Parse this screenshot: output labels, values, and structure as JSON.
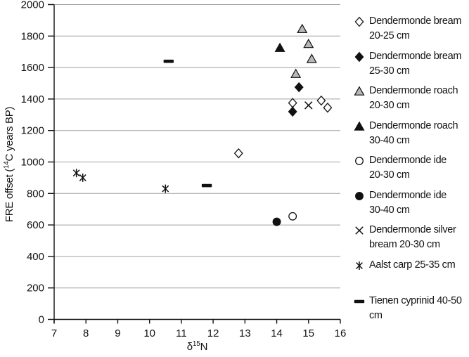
{
  "chart_data": {
    "type": "scatter",
    "title": "",
    "xlabel": {
      "prefix": "δ",
      "sup": "15",
      "suffix": "N"
    },
    "ylabel": {
      "prefix": "FRE offset (",
      "sup": "14",
      "suffix": "C years BP)"
    },
    "xlim": [
      7,
      16
    ],
    "ylim": [
      0,
      2000
    ],
    "x_ticks": [
      7,
      8,
      9,
      10,
      11,
      12,
      13,
      14,
      15,
      16
    ],
    "y_ticks": [
      0,
      200,
      400,
      600,
      800,
      1000,
      1200,
      1400,
      1600,
      1800,
      2000
    ],
    "grid": "horizontal",
    "legend_position": "right",
    "colors": {
      "marker_black": "#111111",
      "gray_fill": "#b8b8b8",
      "white_fill": "#ffffff",
      "gridline": "#a0a0a0",
      "axis": "#111111"
    },
    "series": [
      {
        "name": "Dendermonde bream 20-25 cm",
        "legend_lines": [
          "Dendermonde bream",
          "20-25 cm"
        ],
        "marker": "open-diamond",
        "points": [
          [
            12.8,
            1055
          ],
          [
            14.5,
            1375
          ],
          [
            15.4,
            1390
          ],
          [
            15.6,
            1345
          ]
        ]
      },
      {
        "name": "Dendermonde bream 25-30 cm",
        "legend_lines": [
          "Dendermonde bream",
          "25-30 cm"
        ],
        "marker": "filled-diamond",
        "points": [
          [
            14.7,
            1475
          ],
          [
            14.5,
            1320
          ]
        ]
      },
      {
        "name": "Dendermonde roach 20-30 cm",
        "legend_lines": [
          "Dendermonde roach",
          "20-30 cm"
        ],
        "marker": "gray-triangle",
        "points": [
          [
            14.8,
            1845
          ],
          [
            15.0,
            1750
          ],
          [
            15.1,
            1655
          ],
          [
            14.6,
            1560
          ]
        ]
      },
      {
        "name": "Dendermonde roach 30-40 cm",
        "legend_lines": [
          "Dendermonde roach",
          "30-40 cm"
        ],
        "marker": "filled-triangle",
        "points": [
          [
            14.1,
            1725
          ]
        ]
      },
      {
        "name": "Dendermonde ide 20-30 cm",
        "legend_lines": [
          "Dendermonde ide",
          "20-30 cm"
        ],
        "marker": "open-circle",
        "points": [
          [
            14.5,
            655
          ]
        ]
      },
      {
        "name": "Dendermonde ide 30-40 cm",
        "legend_lines": [
          "Dendermonde ide",
          "30-40 cm"
        ],
        "marker": "filled-circle",
        "points": [
          [
            14.0,
            620
          ]
        ]
      },
      {
        "name": "Dendermonde silver bream 20-30 cm",
        "legend_lines": [
          "Dendermonde silver",
          "bream 20-30 cm"
        ],
        "marker": "x",
        "points": [
          [
            15.0,
            1360
          ]
        ]
      },
      {
        "name": "Aalst carp 25-35 cm",
        "legend_lines": [
          "Aalst carp 25-35 cm"
        ],
        "marker": "asterisk",
        "points": [
          [
            7.7,
            930
          ],
          [
            7.9,
            900
          ],
          [
            10.5,
            830
          ]
        ]
      },
      {
        "name": "Tienen cyprinid 40-50 cm",
        "legend_lines": [
          "Tienen cyprinid 40-50",
          "cm"
        ],
        "marker": "dash",
        "gap_before": true,
        "points": [
          [
            10.6,
            1640
          ],
          [
            11.8,
            850
          ]
        ]
      }
    ]
  }
}
